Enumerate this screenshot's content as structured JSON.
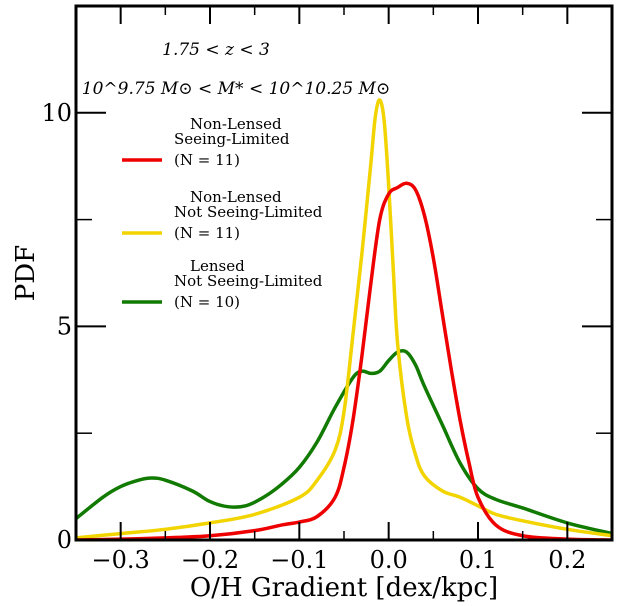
{
  "chart_data": {
    "type": "line",
    "xlabel": "O/H Gradient [dex/kpc]",
    "ylabel": "PDF",
    "xlim": [
      -0.35,
      0.25
    ],
    "ylim": [
      0,
      12.5
    ],
    "x_ticks": [
      -0.3,
      -0.2,
      -0.1,
      0.0,
      0.1,
      0.2
    ],
    "x_tick_labels": [
      "−0.3",
      "−0.2",
      "−0.1",
      "0.0",
      "0.1",
      "0.2"
    ],
    "y_ticks": [
      0,
      5,
      10
    ],
    "y_tick_labels": [
      "0",
      "5",
      "10"
    ],
    "legend_position": "upper-left",
    "annotations": [
      "1.75 < z < 3",
      "10^9.75 M⊙ < M* < 10^10.25 M⊙"
    ],
    "series": [
      {
        "label_lines": [
          "Non-Lensed",
          "Seeing-Limited",
          "(N = 11)"
        ],
        "color": "#ee0000",
        "x": [
          -0.35,
          -0.3,
          -0.25,
          -0.2,
          -0.15,
          -0.12,
          -0.1,
          -0.08,
          -0.06,
          -0.05,
          -0.04,
          -0.03,
          -0.02,
          -0.01,
          0.0,
          0.01,
          0.02,
          0.03,
          0.04,
          0.05,
          0.06,
          0.07,
          0.08,
          0.09,
          0.1,
          0.12,
          0.15,
          0.2,
          0.25
        ],
        "y": [
          0.0,
          0.02,
          0.05,
          0.1,
          0.22,
          0.35,
          0.42,
          0.55,
          1.0,
          1.7,
          2.8,
          4.3,
          6.0,
          7.5,
          8.1,
          8.25,
          8.35,
          8.2,
          7.6,
          6.6,
          5.3,
          4.0,
          2.8,
          1.8,
          1.0,
          0.35,
          0.1,
          0.02,
          0.0
        ]
      },
      {
        "label_lines": [
          "Non-Lensed",
          "Not Seeing-Limited",
          "(N = 11)"
        ],
        "color": "#f2d400",
        "x": [
          -0.35,
          -0.3,
          -0.25,
          -0.2,
          -0.15,
          -0.1,
          -0.08,
          -0.06,
          -0.05,
          -0.04,
          -0.03,
          -0.02,
          -0.015,
          -0.01,
          -0.005,
          0.0,
          0.005,
          0.01,
          0.02,
          0.03,
          0.04,
          0.06,
          0.08,
          0.1,
          0.12,
          0.15,
          0.2,
          0.25
        ],
        "y": [
          0.05,
          0.15,
          0.25,
          0.4,
          0.6,
          1.0,
          1.4,
          2.1,
          3.0,
          4.8,
          6.7,
          8.8,
          9.9,
          10.3,
          9.8,
          8.3,
          6.4,
          4.6,
          2.9,
          2.0,
          1.5,
          1.15,
          1.0,
          0.8,
          0.6,
          0.45,
          0.25,
          0.1
        ]
      },
      {
        "label_lines": [
          "Lensed",
          "Not Seeing-Limited",
          "(N = 10)"
        ],
        "color": "#117a00",
        "x": [
          -0.35,
          -0.32,
          -0.3,
          -0.28,
          -0.265,
          -0.25,
          -0.22,
          -0.2,
          -0.18,
          -0.16,
          -0.14,
          -0.12,
          -0.1,
          -0.08,
          -0.06,
          -0.04,
          -0.03,
          -0.02,
          -0.01,
          0.0,
          0.01,
          0.02,
          0.03,
          0.04,
          0.06,
          0.08,
          0.1,
          0.12,
          0.15,
          0.2,
          0.25
        ],
        "y": [
          0.5,
          1.0,
          1.25,
          1.4,
          1.45,
          1.4,
          1.15,
          0.9,
          0.78,
          0.8,
          1.0,
          1.3,
          1.7,
          2.3,
          3.1,
          3.8,
          3.95,
          3.9,
          3.95,
          4.2,
          4.4,
          4.4,
          4.1,
          3.6,
          2.7,
          1.8,
          1.2,
          0.95,
          0.75,
          0.4,
          0.15
        ]
      }
    ]
  }
}
